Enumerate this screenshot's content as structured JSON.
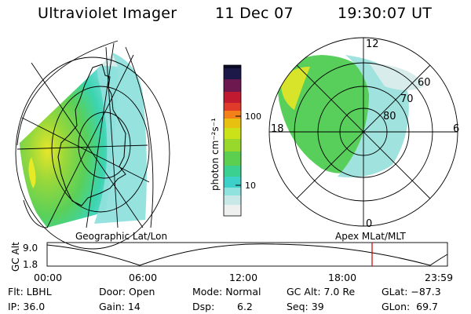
{
  "header": {
    "title": "Ultraviolet Imager",
    "date": "11 Dec 07",
    "time": "19:30:07 UT"
  },
  "geo_panel": {
    "label": "Geographic Lat/Lon"
  },
  "mag_panel": {
    "label": "Apex MLat/MLT",
    "mlt_labels": [
      "12",
      "18",
      "6",
      "0"
    ],
    "lat_labels": [
      "60",
      "70",
      "80"
    ]
  },
  "colorbar": {
    "title": "photon cm⁻²s⁻¹",
    "ticks": [
      "100",
      "10"
    ]
  },
  "altitude_plot": {
    "ylabel": "GC Alt",
    "yticks": [
      "9.0",
      "1.8"
    ],
    "xticks": [
      "00:00",
      "06:00",
      "12:00",
      "18:00",
      "23:59"
    ],
    "marker_time": "19:30",
    "line_color": "#cc0000"
  },
  "status": {
    "flt": "Flt: LBHL",
    "door": "Door: Open",
    "mode": "Mode: Normal",
    "gcalt": "GC Alt: 7.0 Re",
    "glat": "GLat: −87.3",
    "ip": "IP: 36.0",
    "gain": "Gain: 14",
    "dsp_label": "Dsp:",
    "dsp_value": "6.2",
    "seq": "Seq: 39",
    "glon": "GLon:  69.7"
  }
}
